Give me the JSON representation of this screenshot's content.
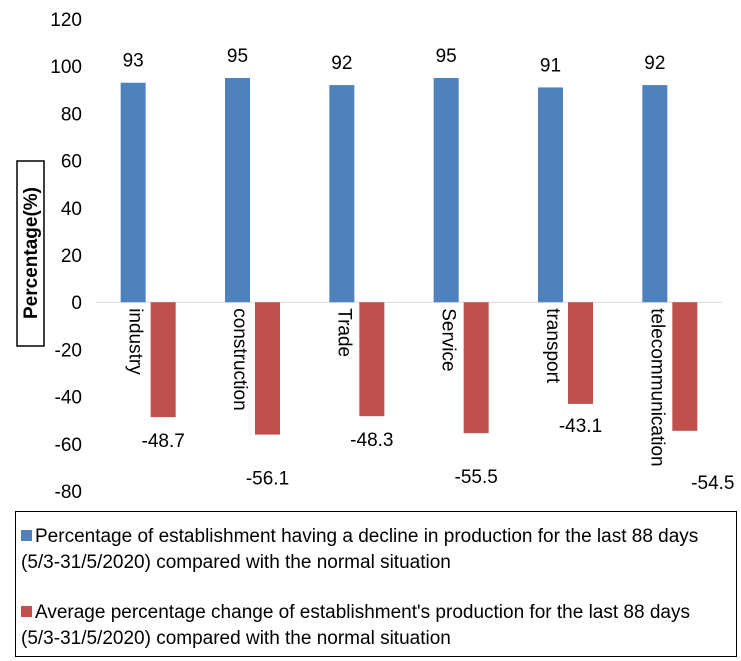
{
  "chart_data": {
    "type": "bar",
    "categories": [
      "industry",
      "construction",
      "Trade",
      "Service",
      "transport",
      "telecommunication"
    ],
    "series": [
      {
        "name": "Percentage of  establishment having a decline in production for the last 88 days (5/3-31/5/2020) compared with the normal situation",
        "values": [
          93,
          95,
          92,
          95,
          91,
          92
        ],
        "color": "#4f81bd"
      },
      {
        "name": "Average percentage change of establishment's production for the last 88 days (5/3-31/5/2020) compared with the normal situation",
        "values": [
          -48.7,
          -56.1,
          -48.3,
          -55.5,
          -43.1,
          -54.5
        ],
        "color": "#c0504d"
      }
    ],
    "ylabel": "Percentage(%)",
    "ylim": [
      -80,
      120
    ],
    "yticks": [
      120,
      100,
      80,
      60,
      40,
      20,
      0,
      -20,
      -40,
      -60,
      -80
    ],
    "data_labels": true,
    "grid": false,
    "legend_position": "bottom"
  }
}
